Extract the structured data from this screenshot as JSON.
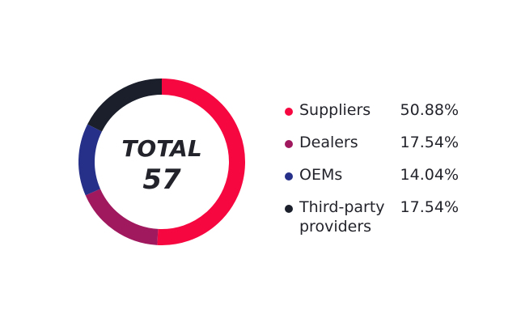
{
  "center": {
    "label": "TOTAL",
    "value": "57"
  },
  "chart_data": {
    "type": "pie",
    "style": "donut",
    "categories": [
      "Suppliers",
      "Dealers",
      "OEMs",
      "Third-party providers"
    ],
    "values": [
      50.88,
      17.54,
      14.04,
      17.54
    ],
    "colors": [
      "#f6073f",
      "#a0195f",
      "#263088",
      "#1a1f2b"
    ],
    "total": 57,
    "legend_position": "right",
    "legend": [
      {
        "label": "Suppliers",
        "value": "50.88%",
        "color": "#f6073f"
      },
      {
        "label": "Dealers",
        "value": "17.54%",
        "color": "#a0195f"
      },
      {
        "label": "OEMs",
        "value": "14.04%",
        "color": "#263088"
      },
      {
        "label": "Third-party providers",
        "value": "17.54%",
        "color": "#1a1f2b"
      }
    ]
  }
}
